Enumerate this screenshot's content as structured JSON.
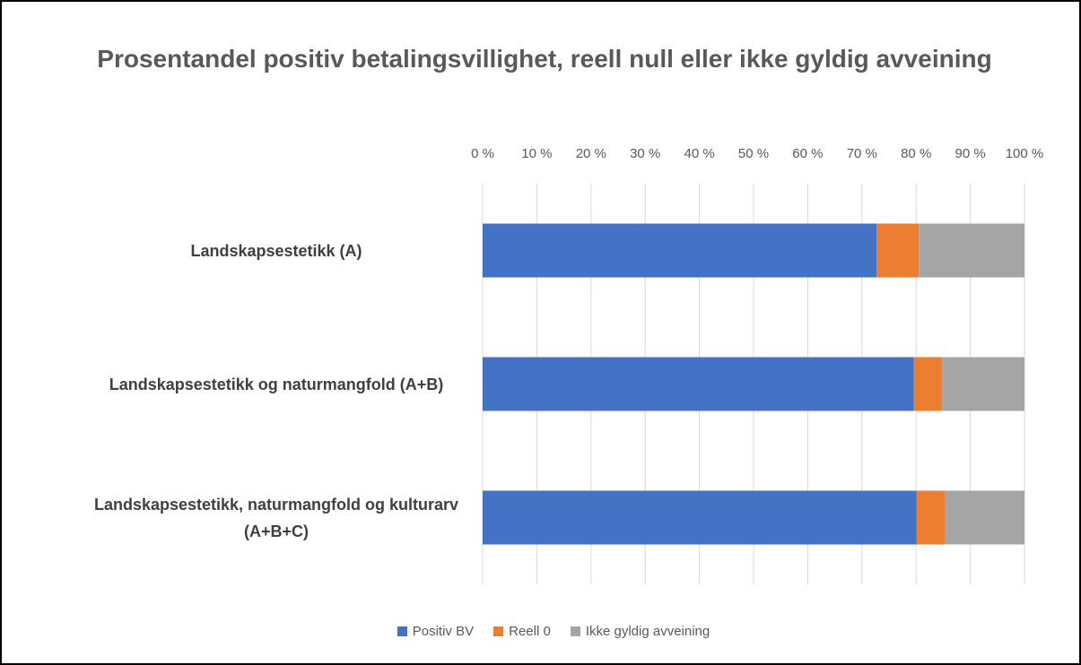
{
  "chart_data": {
    "type": "bar",
    "orientation": "horizontal",
    "stacked": true,
    "title": "Prosentandel positiv betalingsvillighet, reell null eller ikke gyldig avveining",
    "categories": [
      "Landskapsestetikk (A)",
      "Landskapsestetikk og naturmangfold (A+B)",
      "Landskapsestetikk, naturmangfold og kulturarv (A+B+C)"
    ],
    "series": [
      {
        "name": "Positiv BV",
        "color": "#4472c4",
        "values": [
          72.7,
          79.6,
          80.1
        ]
      },
      {
        "name": "Reell 0",
        "color": "#ed7d31",
        "values": [
          7.8,
          5.2,
          5.3
        ]
      },
      {
        "name": "Ikke gyldig avveining",
        "color": "#a5a5a5",
        "values": [
          19.5,
          15.2,
          14.6
        ]
      }
    ],
    "xlim": [
      0,
      100
    ],
    "xticks": [
      {
        "value": 0,
        "label": "0 %"
      },
      {
        "value": 10,
        "label": "10 %"
      },
      {
        "value": 20,
        "label": "20 %"
      },
      {
        "value": 30,
        "label": "30 %"
      },
      {
        "value": 40,
        "label": "40 %"
      },
      {
        "value": 50,
        "label": "50 %"
      },
      {
        "value": 60,
        "label": "60 %"
      },
      {
        "value": 70,
        "label": "70 %"
      },
      {
        "value": 80,
        "label": "80 %"
      },
      {
        "value": 90,
        "label": "90 %"
      },
      {
        "value": 100,
        "label": "100 %"
      }
    ],
    "grid": true,
    "legend": "bottom"
  }
}
